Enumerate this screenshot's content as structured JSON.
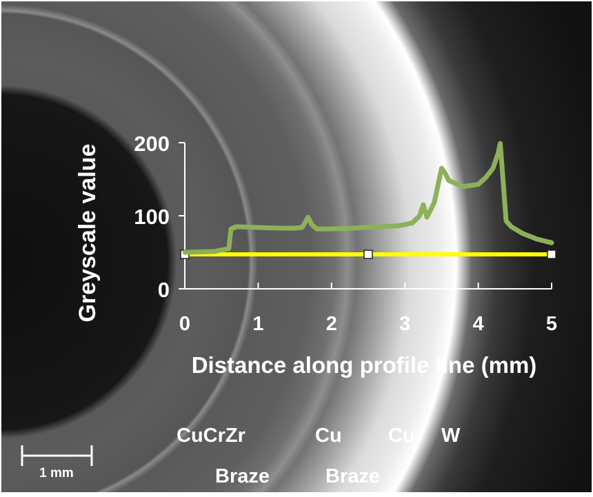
{
  "chart_data": {
    "type": "line",
    "title": "",
    "xlabel": "Distance along profile line (mm)",
    "ylabel": "Greyscale value",
    "xlim": [
      0,
      5
    ],
    "ylim": [
      0,
      200
    ],
    "x_ticks": [
      0,
      1,
      2,
      3,
      4,
      5
    ],
    "y_ticks": [
      0,
      100,
      200
    ],
    "grid": false,
    "legend": "none",
    "series": [
      {
        "color": "#8db05a",
        "x": [
          0,
          0.4,
          0.6,
          0.63,
          0.7,
          1.0,
          1.3,
          1.5,
          1.6,
          1.68,
          1.73,
          1.8,
          2.0,
          2.3,
          2.6,
          2.9,
          3.1,
          3.2,
          3.25,
          3.3,
          3.4,
          3.5,
          3.55,
          3.6,
          3.8,
          4.0,
          4.1,
          4.2,
          4.27,
          4.3,
          4.38,
          4.45,
          4.6,
          4.8,
          5.0
        ],
        "y": [
          50,
          51,
          55,
          82,
          85,
          84,
          83,
          83,
          84,
          98,
          88,
          82,
          82,
          83,
          85,
          86,
          90,
          100,
          115,
          98,
          118,
          165,
          158,
          148,
          140,
          143,
          152,
          165,
          185,
          199,
          93,
          85,
          76,
          68,
          63
        ]
      }
    ],
    "profile_line": {
      "color": "#ffff00",
      "y_value": 50,
      "marker_x": [
        0,
        2.5,
        5
      ]
    }
  },
  "scale_bar": {
    "label": "1 mm"
  },
  "material_labels": {
    "row1": [
      "CuCrZr",
      "Cu",
      "Cu",
      "W"
    ],
    "row2": [
      "Braze",
      "Braze"
    ]
  },
  "colors": {
    "series": "#8db05a",
    "profile_line": "#ffff00",
    "text": "#ffffff",
    "axes": "#ffffff"
  }
}
